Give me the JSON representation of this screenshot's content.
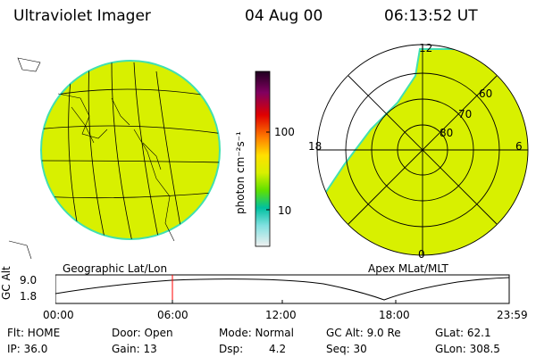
{
  "header": {
    "instrument": "Ultraviolet Imager",
    "date": "04 Aug 00",
    "time": "06:13:52 UT"
  },
  "colorbar": {
    "unit_label": "photon cm⁻²s⁻¹",
    "ticks": [
      "100",
      "10"
    ]
  },
  "left_panel": {
    "caption": "Geographic Lat/Lon"
  },
  "right_panel": {
    "caption": "Apex MLat/MLT",
    "mlt_labels": [
      "12",
      "18",
      "6",
      "0"
    ],
    "mlat_labels": [
      "60",
      "70",
      "80"
    ]
  },
  "altitude_plot": {
    "ylabel": "GC Alt",
    "y_ticks": [
      "9.0",
      "1.8"
    ],
    "x_ticks": [
      "00:00",
      "06:00",
      "12:00",
      "18:00",
      "23:59"
    ]
  },
  "status": {
    "flt": "Flt: HOME",
    "ip": "IP: 36.0",
    "door": "Door: Open",
    "gain": "Gain: 13",
    "mode": "Mode: Normal",
    "dsp_label": "Dsp:",
    "dsp_value": "4.2",
    "gc_alt": "GC Alt: 9.0 Re",
    "seq": "Seq: 30",
    "glat": "GLat:  62.1",
    "glon": "GLon: 308.5"
  },
  "colors": {
    "image_fill": "#d8f000",
    "image_edge": "#40e0b0",
    "marker": "#ff0000"
  }
}
